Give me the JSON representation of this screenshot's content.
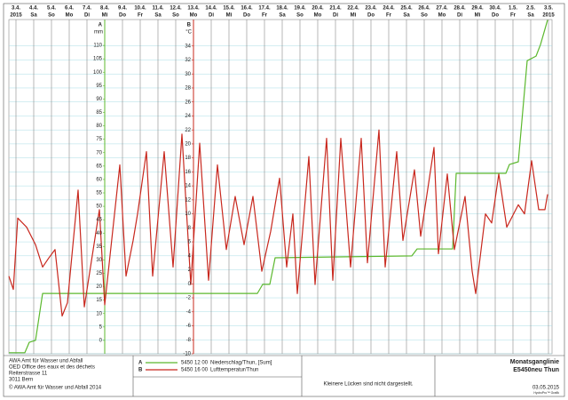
{
  "chart_data": {
    "type": "line",
    "xlim": [
      -0.4,
      30.2
    ],
    "xticks": [
      {
        "value": 0,
        "label": "3.4.",
        "sublabel": "2015"
      },
      {
        "value": 1,
        "label": "4.4.",
        "sublabel": "Sa"
      },
      {
        "value": 2,
        "label": "5.4.",
        "sublabel": "So"
      },
      {
        "value": 3,
        "label": "6.4.",
        "sublabel": "Mo"
      },
      {
        "value": 4,
        "label": "7.4.",
        "sublabel": "Di"
      },
      {
        "value": 5,
        "label": "8.4.",
        "sublabel": "Mi"
      },
      {
        "value": 6,
        "label": "9.4.",
        "sublabel": "Do"
      },
      {
        "value": 7,
        "label": "10.4.",
        "sublabel": "Fr"
      },
      {
        "value": 8,
        "label": "11.4.",
        "sublabel": "Sa"
      },
      {
        "value": 9,
        "label": "12.4.",
        "sublabel": "So"
      },
      {
        "value": 10,
        "label": "13.4.",
        "sublabel": "Mo"
      },
      {
        "value": 11,
        "label": "14.4.",
        "sublabel": "Di"
      },
      {
        "value": 12,
        "label": "15.4.",
        "sublabel": "Mi"
      },
      {
        "value": 13,
        "label": "16.4.",
        "sublabel": "Do"
      },
      {
        "value": 14,
        "label": "17.4.",
        "sublabel": "Fr"
      },
      {
        "value": 15,
        "label": "18.4.",
        "sublabel": "Sa"
      },
      {
        "value": 16,
        "label": "19.4.",
        "sublabel": "So"
      },
      {
        "value": 17,
        "label": "20.4.",
        "sublabel": "Mo"
      },
      {
        "value": 18,
        "label": "21.4.",
        "sublabel": "Di"
      },
      {
        "value": 19,
        "label": "22.4.",
        "sublabel": "Mi"
      },
      {
        "value": 20,
        "label": "23.4.",
        "sublabel": "Do"
      },
      {
        "value": 21,
        "label": "24.4.",
        "sublabel": "Fr"
      },
      {
        "value": 22,
        "label": "25.4.",
        "sublabel": "Sa"
      },
      {
        "value": 23,
        "label": "26.4.",
        "sublabel": "So"
      },
      {
        "value": 24,
        "label": "27.4.",
        "sublabel": "Mo"
      },
      {
        "value": 25,
        "label": "28.4.",
        "sublabel": "Di"
      },
      {
        "value": 26,
        "label": "29.4.",
        "sublabel": "Mi"
      },
      {
        "value": 27,
        "label": "30.4.",
        "sublabel": "Do"
      },
      {
        "value": 28,
        "label": "1.5.",
        "sublabel": "Fr"
      },
      {
        "value": 29,
        "label": "2.5.",
        "sublabel": "Sa"
      },
      {
        "value": 30,
        "label": "3.5.",
        "sublabel": "2015"
      }
    ],
    "ylim": [
      -5,
      115
    ],
    "yticks": [
      0,
      5,
      10,
      15,
      20,
      25,
      30,
      35,
      40,
      45,
      50,
      55,
      60,
      65,
      70,
      75,
      80,
      85,
      90,
      95,
      100,
      105,
      110
    ],
    "y_axis_key": "A",
    "y_axis_unit": "mm",
    "y_axis_color": "#5cb82e",
    "y2lim": [
      -10,
      36
    ],
    "y2ticks": [
      -10,
      -8,
      -6,
      -4,
      -2,
      0,
      2,
      4,
      6,
      8,
      10,
      12,
      14,
      16,
      18,
      20,
      22,
      24,
      26,
      28,
      30,
      32,
      34
    ],
    "y2_axis_key": "B",
    "y2_axis_unit": "°C",
    "y2_axis_color": "#c8281e",
    "grid": true,
    "series": [
      {
        "key": "A",
        "code": "5450 12 00",
        "name": "Niederschlag/Thun, [Sum]",
        "color": "#5cb82e",
        "axis": "y",
        "x": [
          -0.4,
          0.5,
          0.75,
          1.1,
          1.2,
          1.5,
          13.6,
          13.9,
          14.3,
          14.6,
          22.3,
          22.6,
          24.6,
          24.8,
          27.6,
          27.8,
          28.3,
          28.8,
          29.3,
          29.55,
          29.95
        ],
        "values": [
          -4.6,
          -4.6,
          -0.7,
          0,
          4.3,
          17.5,
          17.5,
          20.9,
          20.9,
          30.8,
          31.5,
          34.1,
          34.1,
          62.3,
          62.3,
          65.6,
          66.6,
          104.3,
          106,
          110.3,
          119.5
        ]
      },
      {
        "key": "B",
        "code": "5450 16 00",
        "name": "Lufttemperatur/Thun",
        "color": "#c8281e",
        "axis": "y2",
        "x": [
          -0.4,
          -0.15,
          0.1,
          0.6,
          1.1,
          1.5,
          1.85,
          2.2,
          2.6,
          2.9,
          3.5,
          3.85,
          4.7,
          5.0,
          5.85,
          6.2,
          6.6,
          6.85,
          7.35,
          7.7,
          8.35,
          8.85,
          9.35,
          9.85,
          10.35,
          10.85,
          11.35,
          11.85,
          12.35,
          12.85,
          13.35,
          13.85,
          14.35,
          14.85,
          15.25,
          15.6,
          15.85,
          16.5,
          16.85,
          17.5,
          17.85,
          18.3,
          18.85,
          19.45,
          19.8,
          20.45,
          20.8,
          21.45,
          21.8,
          22.45,
          22.8,
          23.55,
          23.8,
          24.3,
          24.7,
          25.3,
          25.7,
          25.9,
          26.45,
          26.8,
          27.2,
          27.65,
          28.3,
          28.65,
          29.05,
          29.45,
          29.8,
          29.95
        ],
        "values": [
          1.1,
          -0.8,
          9.4,
          8.1,
          5.6,
          2.4,
          3.7,
          4.9,
          -4.6,
          -2.7,
          13.4,
          -3.3,
          10.6,
          -3.0,
          17.0,
          1.1,
          6.2,
          10.0,
          18.9,
          1.1,
          18.9,
          2.4,
          21.4,
          -0.1,
          20.1,
          0.5,
          17.0,
          4.9,
          12.5,
          5.6,
          12.5,
          1.8,
          7.5,
          15.1,
          2.4,
          10.0,
          -1.4,
          18.2,
          -0.1,
          20.8,
          0.5,
          20.8,
          2.4,
          20.8,
          3.0,
          22.0,
          2.4,
          18.9,
          6.2,
          16.3,
          6.8,
          19.5,
          4.3,
          15.7,
          4.9,
          12.5,
          1.8,
          -1.4,
          10.0,
          8.7,
          15.7,
          8.1,
          11.3,
          10.0,
          17.6,
          10.6,
          10.6,
          12.8
        ]
      }
    ],
    "footer": {
      "address": [
        "AWA Amt für Wasser und Abfall",
        "OED Office des eaux et des déchets",
        "Reiterstrasse 11",
        "3011 Bern",
        "© AWA Amt für Wasser und Abfall 2014"
      ],
      "note": "Kleinere Lücken sind nicht dargestellt.",
      "title": "Monatsganglinie",
      "station": "E5450neu Thun",
      "date": "03.05.2015",
      "software": "HydroPro™ Grafik"
    }
  }
}
